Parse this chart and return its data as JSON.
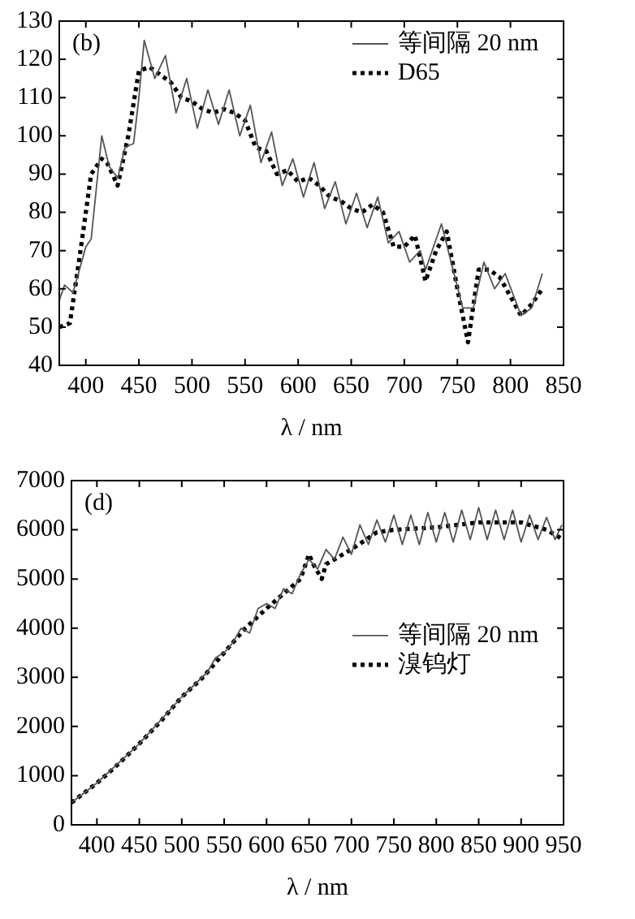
{
  "chart_data": [
    {
      "type": "line",
      "xlabel": "λ / nm",
      "annotations": [
        "(b)"
      ],
      "legend": "top right",
      "marker": "none",
      "grid": false,
      "xlim": [
        375,
        850
      ],
      "xticks": [
        400,
        450,
        500,
        550,
        600,
        650,
        700,
        750,
        800,
        850
      ],
      "ylim": [
        40,
        130
      ],
      "yticks": [
        40,
        50,
        60,
        70,
        80,
        90,
        100,
        110,
        120,
        130
      ],
      "series": [
        {
          "name": "等间隔 20 nm",
          "color": "#555555",
          "line_style": "solid",
          "x": [
            375,
            380,
            388,
            400,
            405,
            415,
            422,
            430,
            437,
            445,
            450,
            455,
            465,
            475,
            485,
            495,
            505,
            515,
            525,
            535,
            545,
            555,
            565,
            575,
            585,
            595,
            605,
            615,
            625,
            635,
            645,
            655,
            665,
            675,
            685,
            695,
            705,
            715,
            720,
            735,
            745,
            755,
            765,
            775,
            785,
            795,
            810,
            820,
            830
          ],
          "values": [
            57,
            61,
            59,
            71,
            73,
            100,
            92,
            89,
            97,
            98,
            110,
            125,
            115,
            121,
            106,
            115,
            102,
            112,
            103,
            112,
            100,
            108,
            93,
            101,
            87,
            94,
            84,
            93,
            81,
            88,
            77,
            85,
            76,
            84,
            72,
            75,
            67,
            70,
            65,
            77,
            66,
            55,
            55,
            67,
            60,
            64,
            53,
            55,
            64
          ]
        },
        {
          "name": "D65",
          "color": "#000000",
          "line_style": "dotted",
          "x": [
            375,
            385,
            395,
            405,
            415,
            420,
            430,
            440,
            450,
            460,
            470,
            480,
            490,
            500,
            510,
            520,
            530,
            540,
            550,
            560,
            570,
            580,
            590,
            600,
            610,
            620,
            630,
            640,
            650,
            660,
            670,
            680,
            690,
            700,
            710,
            720,
            730,
            740,
            750,
            760,
            770,
            780,
            790,
            800,
            810,
            820,
            830
          ],
          "values": [
            50,
            51,
            70,
            90,
            94,
            93,
            87,
            100,
            117,
            118,
            116,
            114,
            110,
            109,
            107,
            106,
            107,
            106,
            104,
            97,
            96,
            90,
            91,
            88,
            89,
            87,
            84,
            83,
            81,
            80,
            82,
            80,
            71,
            71,
            74,
            62,
            70,
            75,
            60,
            46,
            65,
            65,
            63,
            58,
            53,
            56,
            60
          ]
        }
      ]
    },
    {
      "type": "line",
      "xlabel": "λ / nm",
      "annotations": [
        "(d)"
      ],
      "legend": "right",
      "marker": "none",
      "grid": false,
      "xlim": [
        370,
        950
      ],
      "xticks": [
        400,
        450,
        500,
        550,
        600,
        650,
        700,
        750,
        800,
        850,
        900,
        950
      ],
      "ylim": [
        0,
        7000
      ],
      "yticks": [
        0,
        1000,
        2000,
        3000,
        4000,
        5000,
        6000,
        7000
      ],
      "series": [
        {
          "name": "等间隔 20 nm",
          "color": "#555555",
          "line_style": "solid",
          "x": [
            370,
            400,
            450,
            500,
            530,
            540,
            550,
            560,
            570,
            580,
            590,
            600,
            610,
            620,
            630,
            640,
            650,
            660,
            670,
            680,
            690,
            700,
            710,
            720,
            730,
            740,
            750,
            760,
            770,
            780,
            790,
            800,
            810,
            820,
            830,
            840,
            850,
            860,
            870,
            880,
            890,
            900,
            910,
            920,
            930,
            940,
            948
          ],
          "values": [
            450,
            850,
            1650,
            2600,
            3100,
            3400,
            3500,
            3700,
            4000,
            3900,
            4400,
            4500,
            4400,
            4800,
            4700,
            5100,
            5400,
            5200,
            5600,
            5400,
            5850,
            5500,
            6100,
            5700,
            6200,
            5750,
            6300,
            5700,
            6300,
            5700,
            6350,
            5750,
            6350,
            5750,
            6400,
            5800,
            6450,
            5800,
            6400,
            5800,
            6400,
            5750,
            6300,
            5800,
            6250,
            5800,
            6100
          ]
        },
        {
          "name": "溴钨灯",
          "color": "#000000",
          "line_style": "dotted",
          "x": [
            370,
            400,
            420,
            450,
            475,
            500,
            525,
            550,
            575,
            600,
            620,
            640,
            650,
            655,
            665,
            670,
            700,
            730,
            750,
            800,
            850,
            900,
            930,
            950
          ],
          "values": [
            450,
            850,
            1150,
            1650,
            2100,
            2600,
            3000,
            3500,
            4000,
            4400,
            4700,
            5000,
            5500,
            5300,
            5000,
            5300,
            5600,
            5950,
            6000,
            6050,
            6150,
            6150,
            6000,
            5800
          ]
        }
      ]
    }
  ]
}
